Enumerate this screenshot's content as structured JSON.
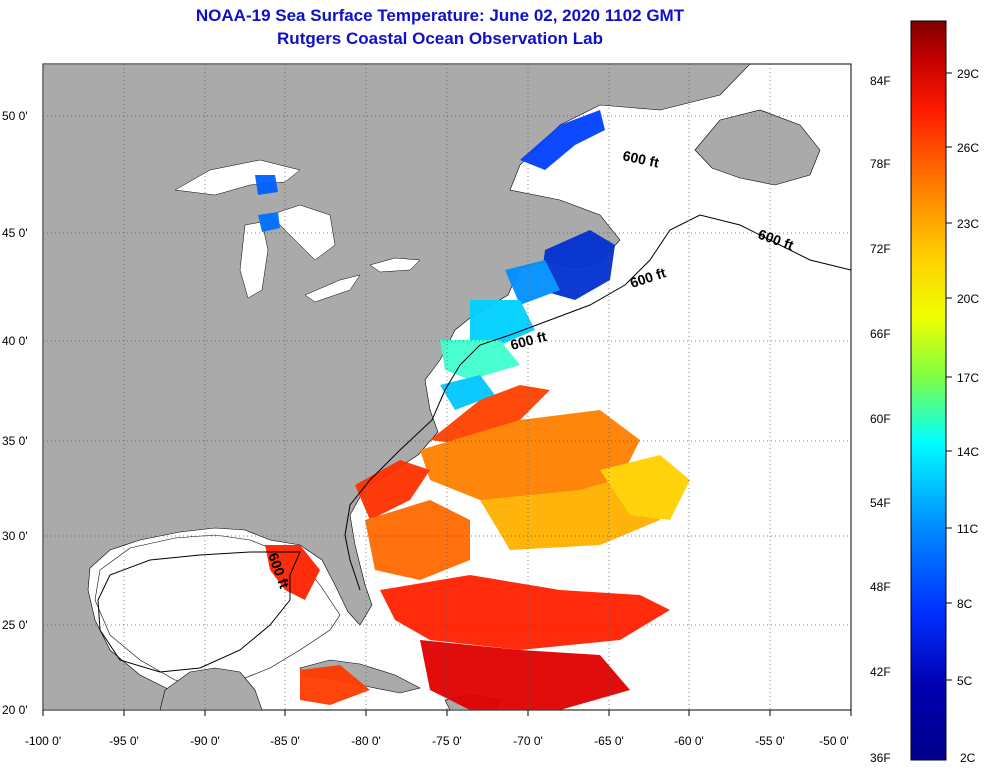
{
  "header": {
    "title": "NOAA-19 Sea Surface Temperature:  June 02, 2020 1102 GMT",
    "subtitle": "Rutgers Coastal Ocean Observation Lab"
  },
  "axes": {
    "lat_labels": [
      "50 0'",
      "45 0'",
      "40 0'",
      "35 0'",
      "30 0'",
      "25 0'",
      "20 0'"
    ],
    "lon_labels": [
      "-100 0'",
      "-95 0'",
      "-90 0'",
      "-85 0'",
      "-80 0'",
      "-75 0'",
      "-70 0'",
      "-65 0'",
      "-60 0'",
      "-55 0'",
      "-50 0'"
    ]
  },
  "contour_labels": [
    "600 ft",
    "600 ft",
    "600 ft",
    "600 ft",
    "600 ft"
  ],
  "colorbar": {
    "fahrenheit": [
      "84F",
      "78F",
      "72F",
      "66F",
      "60F",
      "54F",
      "48F",
      "42F",
      "36F"
    ],
    "celsius": [
      "29C",
      "26C",
      "23C",
      "20C",
      "17C",
      "14C",
      "11C",
      "8C",
      "5C",
      "2C"
    ],
    "colors": [
      "#800000",
      "#c00000",
      "#ff1a00",
      "#ff7a00",
      "#ffd000",
      "#f0ff00",
      "#80ff40",
      "#00ffff",
      "#0090ff",
      "#0030ff",
      "#0000b0",
      "#00008a"
    ]
  },
  "colors": {
    "land": "#aaaaaa",
    "ocean": "#ffffff",
    "title": "#1010c8"
  }
}
